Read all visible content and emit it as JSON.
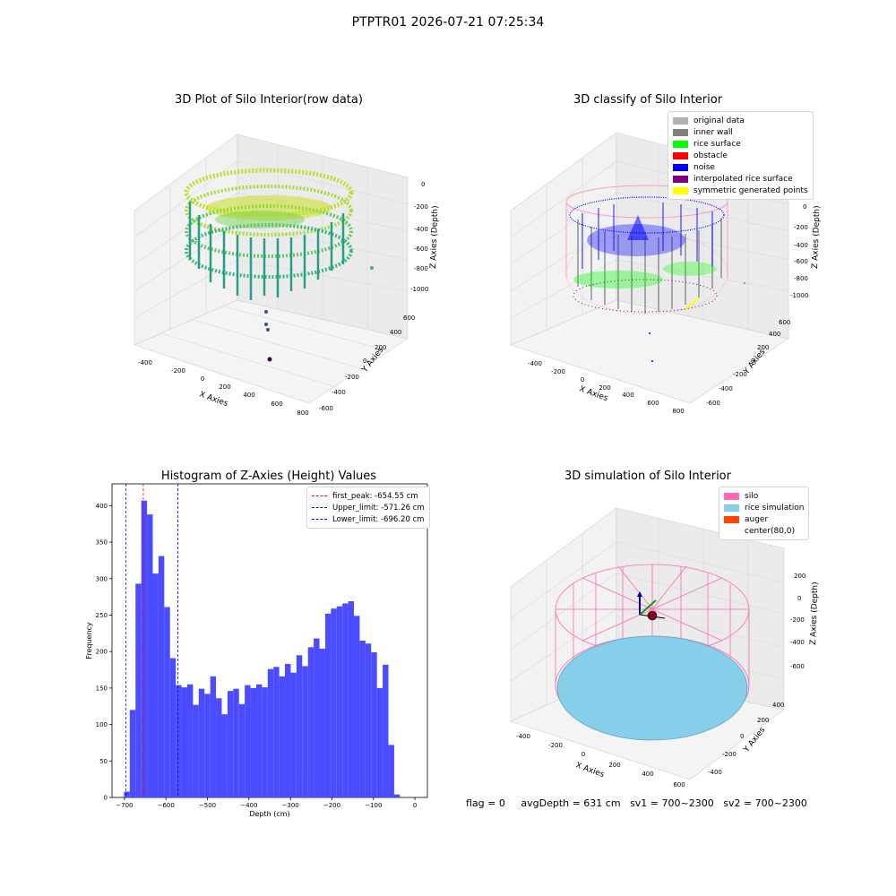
{
  "suptitle": "PTPTR01 2026-07-21 07:25:34",
  "panels": {
    "raw": {
      "title": "3D Plot of Silo Interior(row data)",
      "xlabel": "X Axies",
      "ylabel": "Y Axies",
      "zlabel": "Z Axies (Depth)",
      "xticks": [
        "-400",
        "-200",
        "0",
        "200",
        "400",
        "600",
        "800"
      ],
      "yticks": [
        "-600",
        "-400",
        "-200",
        "0",
        "200",
        "400",
        "600"
      ],
      "zticks": [
        "0",
        "-200",
        "-400",
        "-600",
        "-800",
        "-1000"
      ]
    },
    "classify": {
      "title": "3D classify of Silo Interior",
      "xlabel": "X Axies",
      "ylabel": "Y Axies",
      "zlabel": "Z Axies (Depth)",
      "xticks": [
        "-400",
        "-200",
        "0",
        "200",
        "400",
        "600",
        "800"
      ],
      "yticks": [
        "-600",
        "-400",
        "-200",
        "0",
        "200",
        "400",
        "600"
      ],
      "zticks": [
        "0",
        "-200",
        "-400",
        "-600",
        "-800",
        "-1000"
      ],
      "zticks_partial_top": "00",
      "legend": [
        {
          "label": "original data",
          "color": "#b3b3b3"
        },
        {
          "label": "inner wall",
          "color": "#808080"
        },
        {
          "label": "rice surface",
          "color": "#00ff00"
        },
        {
          "label": "obstacle",
          "color": "#ff0000"
        },
        {
          "label": "noise",
          "color": "#0000ff"
        },
        {
          "label": "interpolated rice surface",
          "color": "#800080"
        },
        {
          "label": "symmetric generated points",
          "color": "#ffff00"
        }
      ]
    },
    "simulation": {
      "title": "3D simulation of Silo Interior",
      "xlabel": "X Axies",
      "ylabel": "Y Axies",
      "zlabel": "Z Axies (Depth)",
      "xticks": [
        "-400",
        "-200",
        "0",
        "200",
        "400",
        "600"
      ],
      "yticks": [
        "-400",
        "-200",
        "0",
        "200",
        "400"
      ],
      "zticks": [
        "200",
        "0",
        "-200",
        "-400",
        "-600"
      ],
      "legend": [
        {
          "label": "silo",
          "color": "#ff69b4"
        },
        {
          "label": "rice simulation",
          "color": "#87ceeb"
        },
        {
          "label": "auger",
          "color": "#ff4500"
        },
        {
          "label": "center(80,0)",
          "color": ""
        }
      ]
    }
  },
  "status": {
    "flag": "flag = 0",
    "avg_depth": "avgDepth = 631 cm",
    "sv1": "sv1 = 700~2300",
    "sv2": "sv2 = 700~2300"
  },
  "chart_data": [
    {
      "type": "bar",
      "title": "Histogram of Z-Axies (Height) Values",
      "xlabel": "Depth (cm)",
      "ylabel": "Frequency",
      "xlim": [
        -730,
        30
      ],
      "ylim": [
        0,
        430
      ],
      "xticks": [
        -700,
        -600,
        -500,
        -400,
        -300,
        -200,
        -100,
        0
      ],
      "yticks": [
        0,
        50,
        100,
        150,
        200,
        250,
        300,
        350,
        400
      ],
      "bin_width": 13.85,
      "bin_start": -701,
      "values": [
        8,
        120,
        293,
        407,
        388,
        307,
        331,
        261,
        191,
        154,
        151,
        155,
        127,
        149,
        142,
        166,
        136,
        114,
        146,
        149,
        128,
        154,
        150,
        155,
        151,
        176,
        179,
        166,
        183,
        171,
        195,
        180,
        206,
        218,
        204,
        252,
        259,
        262,
        266,
        269,
        249,
        215,
        211,
        199,
        150,
        182,
        72,
        4
      ],
      "bar_color": "#4b4bff",
      "vlines": [
        {
          "label": "first_peak: -654.55 cm",
          "x": -654.55,
          "color": "#ff0000"
        },
        {
          "label": "Upper_limit: -571.26 cm",
          "x": -571.26,
          "color": "#0000ff"
        },
        {
          "label": "Lower_limit: -696.20 cm",
          "x": -696.2,
          "color": "#0000ff"
        }
      ],
      "legend_position": "upper right"
    }
  ]
}
